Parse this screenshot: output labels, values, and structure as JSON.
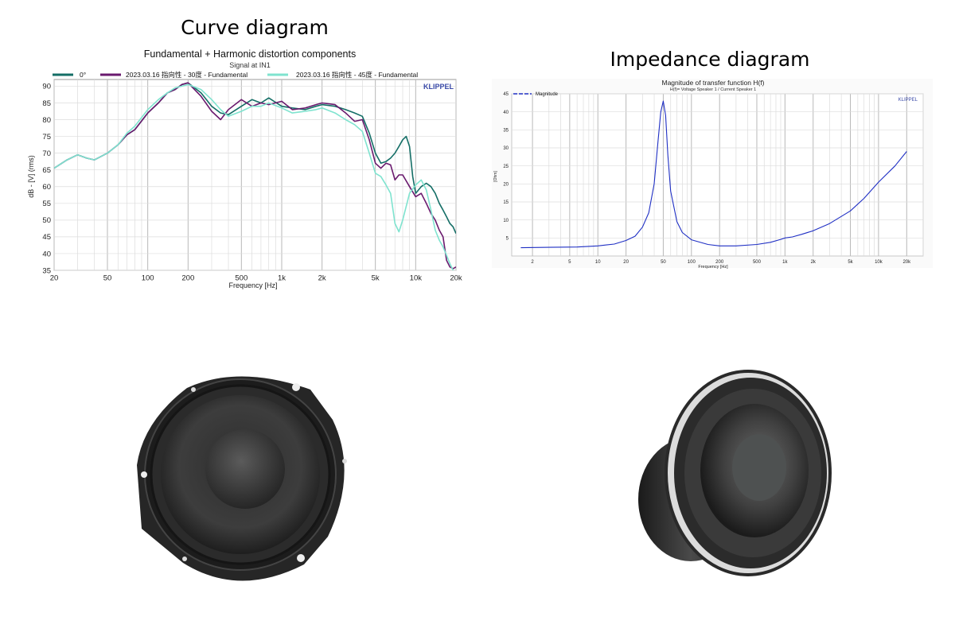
{
  "headings": {
    "left": "Curve diagram",
    "right": "Impedance diagram"
  },
  "colors": {
    "teal": "#146e66",
    "purple": "#6a1a6e",
    "aqua": "#7fe3cf",
    "blue": "#1f2fc4",
    "grid": "#cfcfcf",
    "klippel": "#3a4aa8"
  },
  "chart_data": [
    {
      "type": "line",
      "title": "Fundamental + Harmonic distortion components",
      "subtitle": "Signal at IN1",
      "brand": "KLIPPEL",
      "xlabel": "Frequency [Hz]",
      "ylabel": "dB - [V] (rms)",
      "xscale": "log",
      "xlim": [
        20,
        20000
      ],
      "ylim": [
        35,
        92
      ],
      "xticks": [
        20,
        50,
        100,
        200,
        500,
        1000,
        2000,
        5000,
        10000,
        20000
      ],
      "xtick_labels": [
        "20",
        "50",
        "100",
        "200",
        "500",
        "1k",
        "2k",
        "5k",
        "10k",
        "20k"
      ],
      "yticks": [
        35,
        40,
        45,
        50,
        55,
        60,
        65,
        70,
        75,
        80,
        85,
        90
      ],
      "grid": true,
      "legend_position": "top",
      "series": [
        {
          "name": "0°",
          "color": "#146e66",
          "x": [
            20,
            25,
            30,
            35,
            40,
            50,
            60,
            70,
            80,
            100,
            120,
            140,
            160,
            180,
            200,
            250,
            300,
            350,
            400,
            500,
            600,
            700,
            800,
            1000,
            1200,
            1500,
            1800,
            2000,
            2500,
            3000,
            3500,
            4000,
            4500,
            5000,
            5500,
            6000,
            6500,
            7000,
            7500,
            8000,
            8500,
            9000,
            9500,
            10000,
            11000,
            12000,
            13000,
            14000,
            15000,
            16000,
            17000,
            18000,
            19000,
            20000
          ],
          "y": [
            65.5,
            68,
            69.5,
            68.5,
            68,
            70,
            72.5,
            75.5,
            77,
            82,
            85,
            88,
            89,
            90.5,
            91,
            88,
            84,
            82,
            81.5,
            84,
            86,
            85,
            86.5,
            84,
            83.5,
            83,
            84,
            84.5,
            84,
            83,
            82,
            81,
            76,
            70,
            67,
            67.5,
            68.5,
            70,
            72,
            74,
            75,
            72,
            63,
            58,
            60,
            61,
            60,
            58,
            55,
            53,
            51,
            49,
            48,
            46
          ]
        },
        {
          "name": "2023.03.16 指向性 - 30度 - Fundamental",
          "color": "#6a1a6e",
          "x": [
            20,
            25,
            30,
            35,
            40,
            50,
            60,
            70,
            80,
            100,
            120,
            140,
            160,
            180,
            200,
            250,
            300,
            350,
            400,
            500,
            600,
            700,
            800,
            1000,
            1200,
            1500,
            1800,
            2000,
            2500,
            3000,
            3500,
            4000,
            4500,
            5000,
            5500,
            6000,
            6500,
            7000,
            7500,
            8000,
            9000,
            10000,
            11000,
            12000,
            13000,
            14000,
            15000,
            16000,
            17000,
            18000,
            19000,
            20000
          ],
          "y": [
            65.5,
            68,
            69.5,
            68.5,
            68,
            70,
            72.5,
            75.5,
            77,
            82,
            85,
            88,
            89,
            90.5,
            91,
            87,
            82.5,
            80,
            83,
            86,
            84,
            85,
            84.5,
            85.5,
            83,
            83.5,
            84.5,
            85,
            84.5,
            82,
            79.5,
            80,
            74,
            67,
            65.5,
            67,
            66.5,
            62,
            63.5,
            63.5,
            60,
            57,
            58,
            55,
            52,
            50,
            47,
            45,
            38,
            36,
            35.5,
            36
          ]
        },
        {
          "name": "2023.03.16 指向性 - 45度 - Fundamental",
          "color": "#7fe3cf",
          "x": [
            20,
            25,
            30,
            35,
            40,
            50,
            60,
            70,
            80,
            100,
            120,
            140,
            160,
            180,
            200,
            250,
            300,
            350,
            400,
            500,
            600,
            700,
            800,
            1000,
            1200,
            1500,
            1800,
            2000,
            2500,
            3000,
            3500,
            4000,
            4500,
            5000,
            5500,
            6000,
            6500,
            7000,
            7500,
            8000,
            9000,
            10000,
            11000,
            12000,
            13000,
            14000,
            15000,
            16000,
            17000,
            18000,
            19000,
            20000
          ],
          "y": [
            65.5,
            68,
            69.5,
            68.5,
            68,
            70,
            72.5,
            76,
            78,
            83,
            86,
            88,
            89.5,
            90,
            90.5,
            89,
            86,
            83,
            81,
            82.5,
            84,
            84,
            85,
            83.5,
            82,
            82.5,
            83,
            83.5,
            82,
            80,
            78.5,
            76.5,
            70,
            64,
            63,
            60.5,
            58,
            49,
            46.5,
            50,
            58,
            60.5,
            62,
            59,
            53,
            47,
            44,
            42,
            39.5,
            37,
            35,
            34
          ]
        }
      ]
    },
    {
      "type": "line",
      "title": "Magnitude of transfer function H(f)",
      "subtitle": "H(f)= Voltage Speaker 1 / Current Speaker 1",
      "brand": "KLIPPEL",
      "xlabel": "Frequency [Hz]",
      "ylabel": "[Ohm]",
      "xscale": "log",
      "xlim": [
        1.2,
        30000
      ],
      "ylim": [
        0,
        45
      ],
      "xticks": [
        2,
        5,
        10,
        20,
        50,
        100,
        200,
        500,
        1000,
        2000,
        5000,
        10000,
        20000
      ],
      "xtick_labels": [
        "2",
        "5",
        "10",
        "20",
        "50",
        "100",
        "200",
        "500",
        "1k",
        "2k",
        "5k",
        "10k",
        "20k"
      ],
      "yticks": [
        5,
        10,
        15,
        20,
        25,
        30,
        35,
        40,
        45
      ],
      "grid": true,
      "legend_position": "top-left",
      "series": [
        {
          "name": "Magnitude",
          "color": "#1f2fc4",
          "x": [
            1.5,
            3,
            6,
            10,
            15,
            20,
            25,
            30,
            35,
            40,
            44,
            47,
            50,
            53,
            56,
            60,
            70,
            80,
            100,
            150,
            200,
            300,
            500,
            700,
            900,
            1000,
            1200,
            1500,
            2000,
            3000,
            5000,
            7000,
            10000,
            15000,
            20000
          ],
          "y": [
            2.3,
            2.4,
            2.5,
            2.8,
            3.3,
            4.3,
            5.5,
            8,
            12,
            20,
            32,
            40,
            43,
            39,
            28,
            18,
            9.5,
            6.5,
            4.5,
            3.2,
            2.8,
            2.8,
            3.2,
            3.8,
            4.6,
            5,
            5.3,
            6,
            7,
            9,
            12.5,
            16,
            20.5,
            25,
            29
          ]
        }
      ]
    }
  ]
}
